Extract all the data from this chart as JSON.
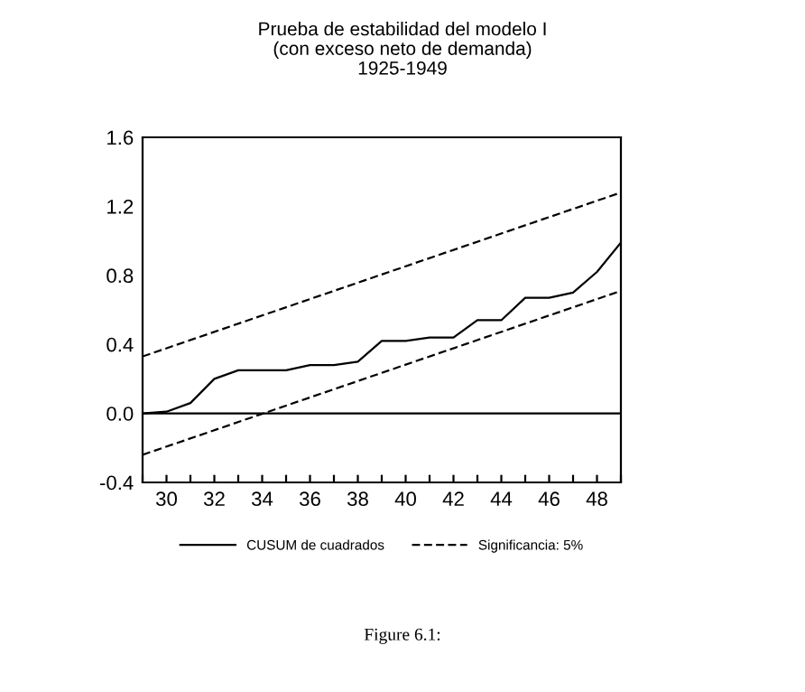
{
  "chart_data": {
    "type": "line",
    "title": "Prueba de estabilidad del modelo I\n(con exceso neto de demanda)\n1925-1949",
    "annotations": [
      "Figure 6.1:"
    ],
    "xlim": [
      29,
      49
    ],
    "ylim": [
      -0.4,
      1.6
    ],
    "xticks": [
      {
        "value": 29,
        "label": null
      },
      30,
      {
        "value": 31,
        "label": null
      },
      32,
      {
        "value": 33,
        "label": null
      },
      34,
      {
        "value": 35,
        "label": null
      },
      36,
      {
        "value": 37,
        "label": null
      },
      38,
      {
        "value": 39,
        "label": null
      },
      40,
      {
        "value": 41,
        "label": null
      },
      42,
      {
        "value": 43,
        "label": null
      },
      44,
      {
        "value": 45,
        "label": null
      },
      46,
      {
        "value": 47,
        "label": null
      },
      48,
      {
        "value": 49,
        "label": null
      }
    ],
    "yticks": [
      {
        "value": -0.4,
        "label": "-0.4"
      },
      {
        "value": 0.0,
        "label": "0.0"
      },
      0.4,
      0.8,
      1.2,
      1.6
    ],
    "series": [
      {
        "name": "CUSUM de cuadrados",
        "color": "#000000",
        "line_style": "solid",
        "x": [
          29,
          30,
          31,
          32,
          33,
          34,
          35,
          36,
          37,
          38,
          39,
          40,
          41,
          42,
          43,
          44,
          45,
          46,
          47,
          48,
          49
        ],
        "values": [
          0.0,
          0.01,
          0.06,
          0.2,
          0.25,
          0.25,
          0.25,
          0.28,
          0.28,
          0.3,
          0.42,
          0.42,
          0.44,
          0.44,
          0.54,
          0.54,
          0.67,
          0.67,
          0.7,
          0.82,
          0.99
        ]
      },
      {
        "name": "Significancia: 5%",
        "color": "#000000",
        "line_style": "dashed",
        "x": [
          29,
          49
        ],
        "values": [
          0.33,
          1.28
        ]
      },
      {
        "color": "#000000",
        "line_style": "dashed",
        "x": [
          29,
          49
        ],
        "values": [
          -0.24,
          0.71
        ]
      }
    ],
    "ref_lines": [
      {
        "axis": "y",
        "value": 0,
        "color": "#000000",
        "line_style": "solid"
      }
    ],
    "grid": false,
    "legend": "bottom"
  }
}
